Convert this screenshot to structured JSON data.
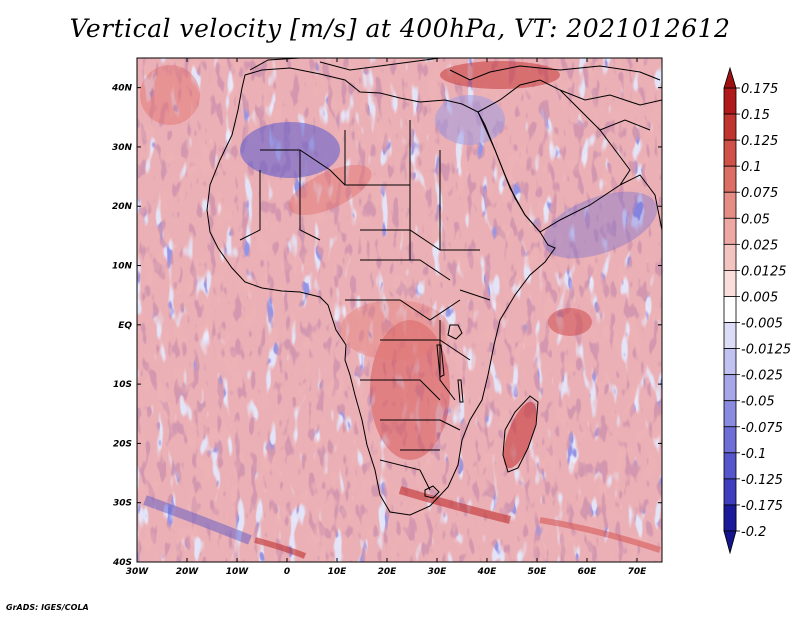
{
  "title": "Vertical velocity [m/s] at 400hPa, VT: 2021012612",
  "footer": "GrADS: IGES/COLA",
  "map": {
    "lon_range": [
      -30,
      75
    ],
    "lat_range": [
      -40,
      45
    ],
    "variable": "Vertical velocity",
    "units": "m/s",
    "level": "400hPa",
    "x_ticks": [
      {
        "value": -30,
        "label": "30W"
      },
      {
        "value": -20,
        "label": "20W"
      },
      {
        "value": -10,
        "label": "10W"
      },
      {
        "value": 0,
        "label": "0"
      },
      {
        "value": 10,
        "label": "10E"
      },
      {
        "value": 20,
        "label": "20E"
      },
      {
        "value": 30,
        "label": "30E"
      },
      {
        "value": 40,
        "label": "40E"
      },
      {
        "value": 50,
        "label": "50E"
      },
      {
        "value": 60,
        "label": "60E"
      },
      {
        "value": 70,
        "label": "70E"
      }
    ],
    "y_ticks": [
      {
        "value": 40,
        "label": "40N"
      },
      {
        "value": 30,
        "label": "30N"
      },
      {
        "value": 20,
        "label": "20N"
      },
      {
        "value": 10,
        "label": "10N"
      },
      {
        "value": 0,
        "label": "EQ"
      },
      {
        "value": -10,
        "label": "10S"
      },
      {
        "value": -20,
        "label": "20S"
      },
      {
        "value": -30,
        "label": "30S"
      },
      {
        "value": -40,
        "label": "40S"
      }
    ]
  },
  "colorbar": {
    "levels": [
      {
        "label": "0.175",
        "color": "#b01a1a"
      },
      {
        "label": "0.15",
        "color": "#c0362f"
      },
      {
        "label": "0.125",
        "color": "#cf5148"
      },
      {
        "label": "0.1",
        "color": "#dc6e66"
      },
      {
        "label": "0.075",
        "color": "#e58c85"
      },
      {
        "label": "0.05",
        "color": "#eda8a3"
      },
      {
        "label": "0.025",
        "color": "#f4c4c0"
      },
      {
        "label": "0.0125",
        "color": "#f9dedb"
      },
      {
        "label": "0.005",
        "color": "#ffffff"
      },
      {
        "label": "-0.005",
        "color": "#dcdcf6"
      },
      {
        "label": "-0.0125",
        "color": "#c2c2f0"
      },
      {
        "label": "-0.025",
        "color": "#a6a6e8"
      },
      {
        "label": "-0.05",
        "color": "#8a8ae0"
      },
      {
        "label": "-0.075",
        "color": "#6e6ed6"
      },
      {
        "label": "-0.1",
        "color": "#5555cc"
      },
      {
        "label": "-0.125",
        "color": "#3e3ebf"
      },
      {
        "label": "-0.175",
        "color": "#2a2ab0"
      },
      {
        "label": "-0.2",
        "color": "#1a1a9a"
      }
    ],
    "top_color": "#a01010",
    "bottom_color": "#14148c"
  },
  "colors": {
    "background_blue": "#a4a4ee",
    "land_blue": "#b8b8f2",
    "strong_blue": "#5a5ad0",
    "red": "#e26f6a",
    "strong_red": "#c22d2d",
    "border": "#000000"
  }
}
